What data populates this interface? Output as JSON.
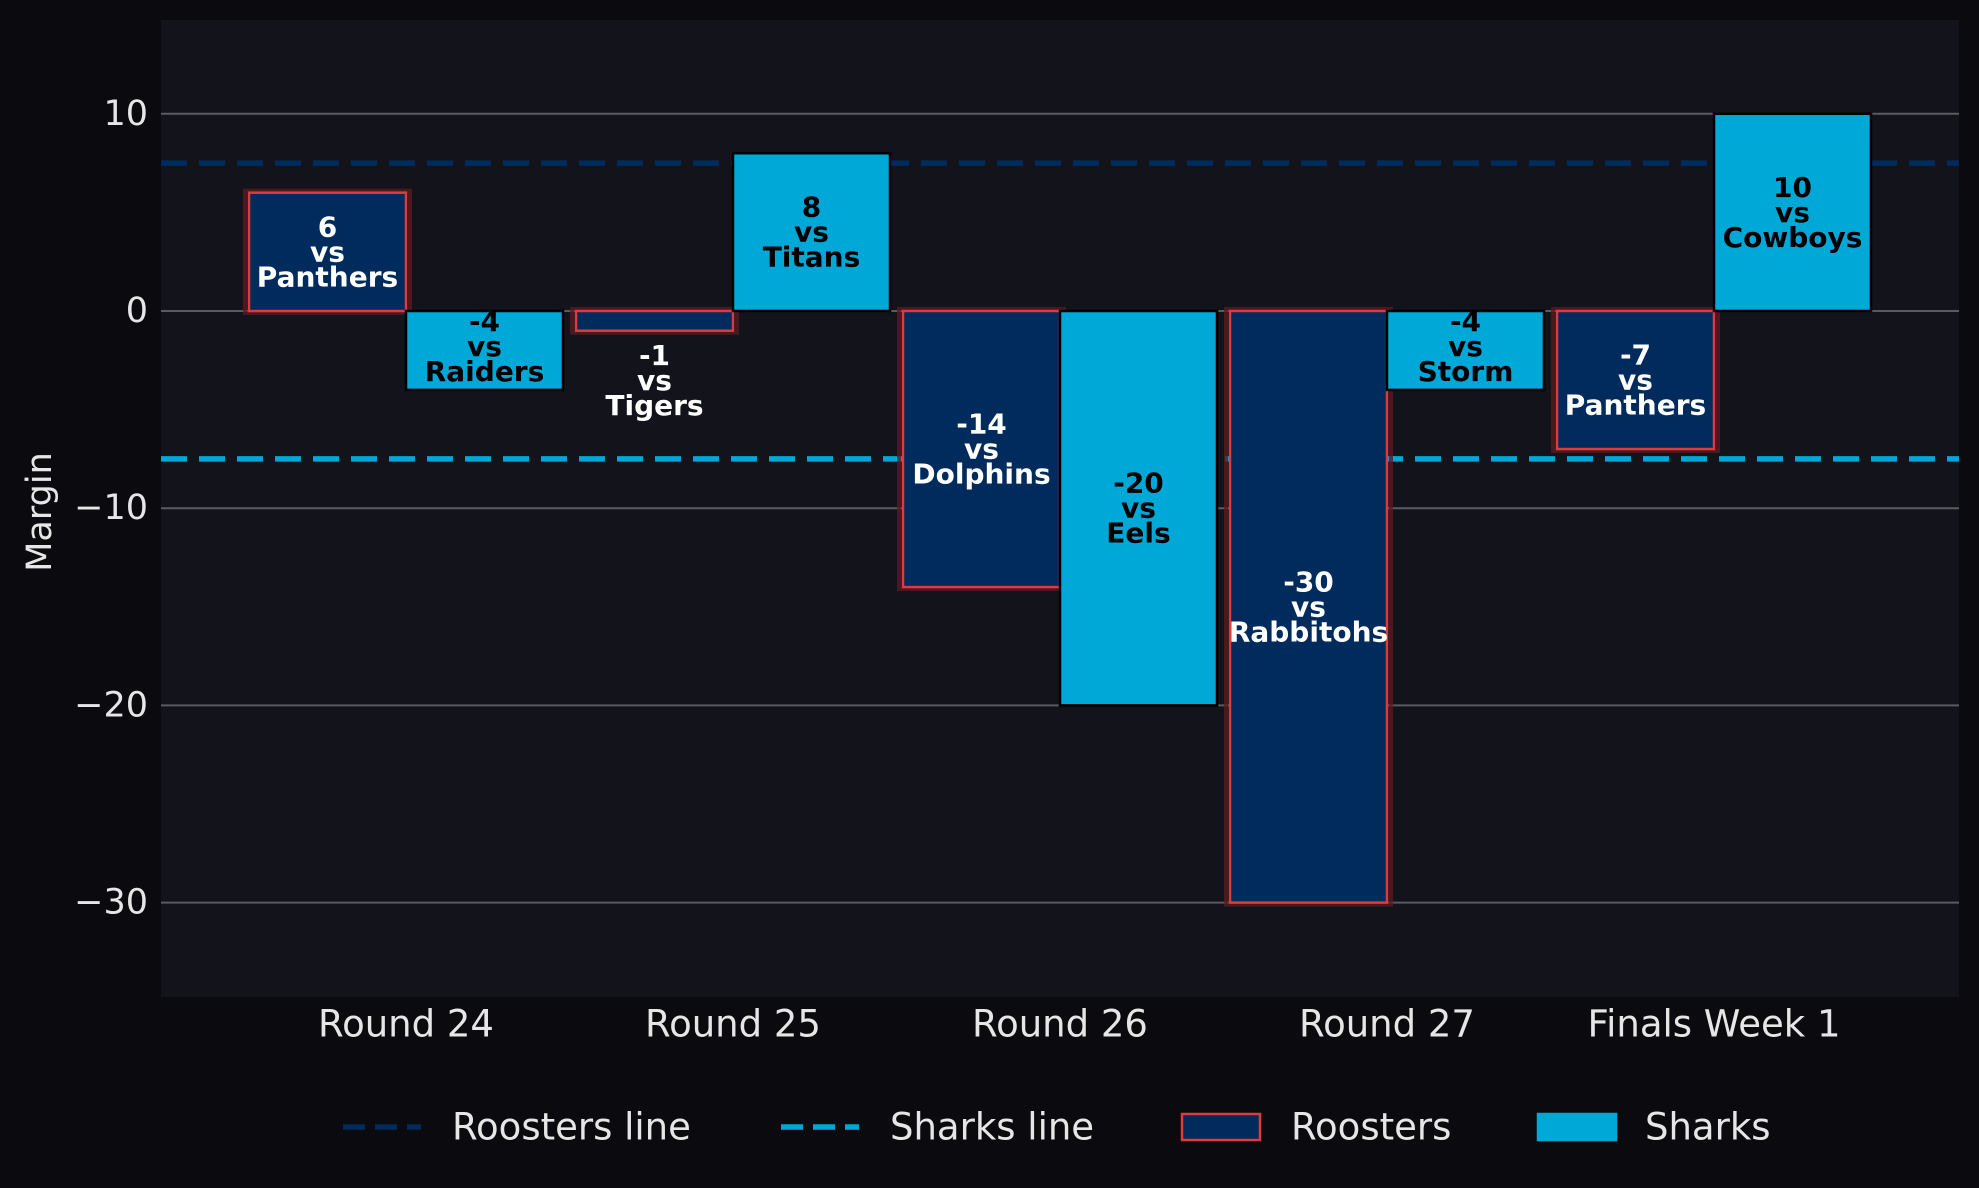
{
  "chart_data": {
    "type": "bar",
    "categories": [
      "Round 24",
      "Round 25",
      "Round 26",
      "Round 27",
      "Finals Week 1"
    ],
    "ylabel": "Margin",
    "xlabel": "",
    "ylim": [
      -35,
      15
    ],
    "yticks": [
      10,
      0,
      -10,
      -20,
      -30
    ],
    "ytick_labels": [
      "10",
      "0",
      "−10",
      "−20",
      "−30"
    ],
    "grid": "horizontal",
    "legend_position": "bottom",
    "series": [
      {
        "name": "Roosters",
        "color": "#002b5c",
        "edge_color": "#e03a3e",
        "values": [
          6,
          -1,
          -14,
          -30,
          -7
        ],
        "opponents": [
          "Panthers",
          "Tigers",
          "Dolphins",
          "Rabbitohs",
          "Panthers"
        ],
        "labels": [
          "6",
          "-1",
          "-14",
          "-30",
          "-7"
        ]
      },
      {
        "name": "Sharks",
        "color": "#00a8d8",
        "edge_color": "#000000",
        "values": [
          -4,
          8,
          -20,
          -4,
          10
        ],
        "opponents": [
          "Raiders",
          "Titans",
          "Eels",
          "Storm",
          "Cowboys"
        ],
        "labels": [
          "-4",
          "8",
          "-20",
          "-4",
          "10"
        ]
      }
    ],
    "reference_lines": [
      {
        "name": "Roosters line",
        "value": 7.5,
        "color": "#002b5c"
      },
      {
        "name": "Sharks line",
        "value": -7.5,
        "color": "#00a8d8"
      }
    ],
    "vs_text": "vs"
  },
  "legend": {
    "items": [
      "Roosters line",
      "Sharks line",
      "Roosters",
      "Sharks"
    ]
  }
}
